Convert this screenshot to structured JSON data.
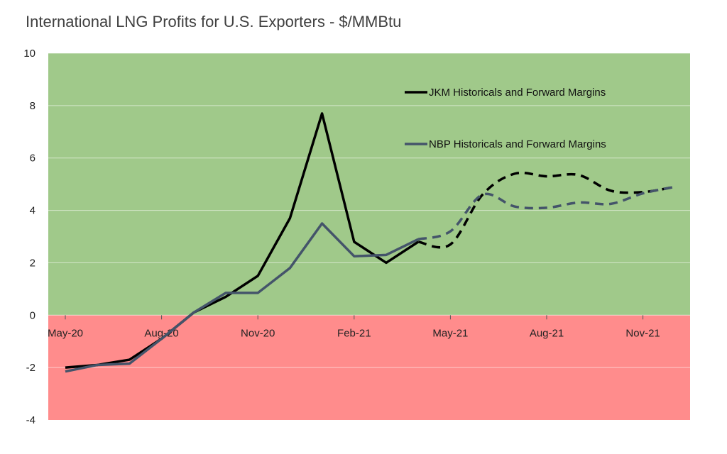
{
  "chart_data": {
    "type": "line",
    "title": "International LNG Profits for U.S. Exporters - $/MMBtu",
    "xlabel": "",
    "ylabel": "",
    "ylim": [
      -4,
      10
    ],
    "yticks": [
      -4,
      -2,
      0,
      2,
      4,
      6,
      8,
      10
    ],
    "x_months": [
      "May-20",
      "Jun-20",
      "Jul-20",
      "Aug-20",
      "Sep-20",
      "Oct-20",
      "Nov-20",
      "Dec-20",
      "Jan-21",
      "Feb-21",
      "Mar-21",
      "Apr-21",
      "May-21",
      "Jun-21",
      "Jul-21",
      "Aug-21",
      "Sep-21",
      "Oct-21",
      "Nov-21",
      "Dec-21"
    ],
    "x_tick_labels": [
      {
        "label": "May-20",
        "month": "May-20"
      },
      {
        "label": "Aug-20",
        "month": "Aug-20"
      },
      {
        "label": "Nov-20",
        "month": "Nov-20"
      },
      {
        "label": "Feb-21",
        "month": "Feb-21"
      },
      {
        "label": "May-21",
        "month": "May-21"
      },
      {
        "label": "Aug-21",
        "month": "Aug-21"
      },
      {
        "label": "Nov-21",
        "month": "Nov-21"
      }
    ],
    "background_bands": {
      "positive_color": "#a0c98a",
      "negative_color": "#ff8c8c"
    },
    "grid": true,
    "legend_position": "top-right",
    "series": [
      {
        "name": "JKM Historicals and Forward Margins",
        "color": "#000000",
        "historical": [
          {
            "x": "May-20",
            "y": -2.0
          },
          {
            "x": "Jun-20",
            "y": -1.9
          },
          {
            "x": "Jul-20",
            "y": -1.7
          },
          {
            "x": "Aug-20",
            "y": -0.9
          },
          {
            "x": "Sep-20",
            "y": 0.1
          },
          {
            "x": "Oct-20",
            "y": 0.7
          },
          {
            "x": "Nov-20",
            "y": 1.5
          },
          {
            "x": "Dec-20",
            "y": 3.7
          },
          {
            "x": "Jan-21",
            "y": 7.7
          },
          {
            "x": "Feb-21",
            "y": 2.8
          },
          {
            "x": "Mar-21",
            "y": 2.0
          },
          {
            "x": "Apr-21",
            "y": 2.8
          }
        ],
        "forward": [
          {
            "x": "Apr-21",
            "y": 2.8
          },
          {
            "x": "May-21",
            "y": 2.7
          },
          {
            "x": "Jun-21",
            "y": 4.6
          },
          {
            "x": "Jul-21",
            "y": 5.4
          },
          {
            "x": "Aug-21",
            "y": 5.3
          },
          {
            "x": "Sep-21",
            "y": 5.35
          },
          {
            "x": "Oct-21",
            "y": 4.75
          },
          {
            "x": "Nov-21",
            "y": 4.7
          },
          {
            "x": "Dec-21",
            "y": 4.9
          }
        ]
      },
      {
        "name": "NBP Historicals and Forward Margins",
        "color": "#44546a",
        "historical": [
          {
            "x": "May-20",
            "y": -2.15
          },
          {
            "x": "Jun-20",
            "y": -1.9
          },
          {
            "x": "Jul-20",
            "y": -1.85
          },
          {
            "x": "Aug-20",
            "y": -0.9
          },
          {
            "x": "Sep-20",
            "y": 0.1
          },
          {
            "x": "Oct-20",
            "y": 0.85
          },
          {
            "x": "Nov-20",
            "y": 0.85
          },
          {
            "x": "Dec-20",
            "y": 1.8
          },
          {
            "x": "Jan-21",
            "y": 3.5
          },
          {
            "x": "Feb-21",
            "y": 2.25
          },
          {
            "x": "Mar-21",
            "y": 2.3
          },
          {
            "x": "Apr-21",
            "y": 2.9
          }
        ],
        "forward": [
          {
            "x": "Apr-21",
            "y": 2.9
          },
          {
            "x": "May-21",
            "y": 3.2
          },
          {
            "x": "Jun-21",
            "y": 4.6
          },
          {
            "x": "Jul-21",
            "y": 4.15
          },
          {
            "x": "Aug-21",
            "y": 4.1
          },
          {
            "x": "Sep-21",
            "y": 4.3
          },
          {
            "x": "Oct-21",
            "y": 4.25
          },
          {
            "x": "Nov-21",
            "y": 4.65
          },
          {
            "x": "Dec-21",
            "y": 4.9
          }
        ]
      }
    ]
  }
}
